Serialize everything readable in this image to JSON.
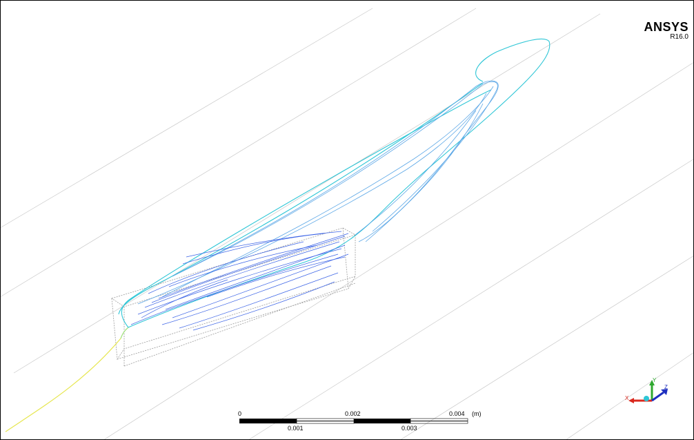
{
  "brand": {
    "name": "ANSYS",
    "version": "R16.0"
  },
  "scale_bar": {
    "unit": "(m)",
    "labels_top": [
      "0",
      "0.002",
      "0.004"
    ],
    "labels_bottom": [
      "0.001",
      "0.003"
    ]
  },
  "triad": {
    "x_label": "X",
    "y_label": "Y",
    "z_label": "Z"
  },
  "colors": {
    "streamline_blue": "#3b63e6",
    "streamline_cyan": "#2ec6d6",
    "streamline_yellow": "#e6e64d",
    "grid_line": "#c8c8c8",
    "axis_x": "#d9281e",
    "axis_y": "#2fa82f",
    "axis_z": "#1e2fbf"
  }
}
